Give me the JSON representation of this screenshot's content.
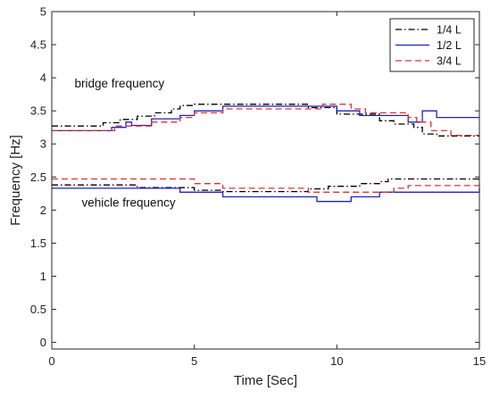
{
  "chart_data": {
    "type": "line",
    "title": "",
    "xlabel": "Time [Sec]",
    "ylabel": "Frequency [Hz]",
    "xlim": [
      0,
      15
    ],
    "ylim": [
      -0.1,
      5
    ],
    "xticks": [
      0,
      5,
      10,
      15
    ],
    "yticks": [
      0,
      0.5,
      1,
      1.5,
      2,
      2.5,
      3,
      3.5,
      4,
      4.5,
      5
    ],
    "grid": false,
    "legend_position": "top-right",
    "annotations": [
      {
        "text": "bridge frequency",
        "x": 0.8,
        "y": 3.85
      },
      {
        "text": "vehicle frequency",
        "x": 1.05,
        "y": 2.05
      }
    ],
    "series": [
      {
        "name": "1/4 L",
        "color": "#000000",
        "dash": "dashdot",
        "step_groups": [
          {
            "x": [
              0,
              1.2,
              1.8,
              2.4,
              3.0,
              3.6,
              4.2,
              4.5,
              5.0,
              9.0,
              10.0,
              11.5,
              12.0,
              12.7,
              13.0,
              13.5,
              15.0
            ],
            "y": [
              3.27,
              3.27,
              3.32,
              3.37,
              3.42,
              3.47,
              3.53,
              3.58,
              3.6,
              3.55,
              3.45,
              3.35,
              3.3,
              3.25,
              3.15,
              3.12,
              3.12
            ]
          },
          {
            "x": [
              0,
              1.5,
              3.0,
              5.0,
              6.0,
              9.0,
              9.7,
              10.0,
              10.8,
              11.5,
              11.8,
              15.0
            ],
            "y": [
              2.38,
              2.38,
              2.34,
              2.3,
              2.28,
              2.32,
              2.36,
              2.36,
              2.4,
              2.43,
              2.47,
              2.47
            ]
          }
        ]
      },
      {
        "name": "1/2 L",
        "color": "#2222b8",
        "dash": "solid",
        "step_groups": [
          {
            "x": [
              0,
              1.6,
              2.1,
              2.6,
              2.8,
              3.5,
              4.5,
              5.0,
              6.0,
              10.0,
              10.8,
              12.5,
              13.0,
              13.5,
              15.0
            ],
            "y": [
              3.2,
              3.2,
              3.25,
              3.33,
              3.28,
              3.38,
              3.43,
              3.5,
              3.57,
              3.5,
              3.43,
              3.33,
              3.5,
              3.4,
              3.4
            ]
          },
          {
            "x": [
              0,
              3.3,
              4.5,
              6.0,
              9.3,
              10.5,
              11.5,
              15.0
            ],
            "y": [
              2.33,
              2.33,
              2.27,
              2.2,
              2.13,
              2.2,
              2.27,
              2.33
            ]
          }
        ]
      },
      {
        "name": "3/4 L",
        "color": "#e03030",
        "dash": "dashed",
        "step_groups": [
          {
            "x": [
              0,
              1.5,
              2.2,
              3.5,
              4.5,
              5.0,
              6.0,
              9.5,
              10.5,
              11.0,
              12.5,
              12.8,
              13.3,
              14.0,
              15.0
            ],
            "y": [
              3.2,
              3.2,
              3.27,
              3.33,
              3.4,
              3.47,
              3.53,
              3.6,
              3.53,
              3.47,
              3.4,
              3.33,
              3.2,
              3.13,
              3.13
            ]
          },
          {
            "x": [
              0,
              3.4,
              5.0,
              6.0,
              9.0,
              10.5,
              11.0,
              12.0,
              12.5,
              15.0
            ],
            "y": [
              2.47,
              2.47,
              2.4,
              2.33,
              2.27,
              2.27,
              2.27,
              2.33,
              2.37,
              2.4
            ]
          }
        ]
      }
    ]
  }
}
